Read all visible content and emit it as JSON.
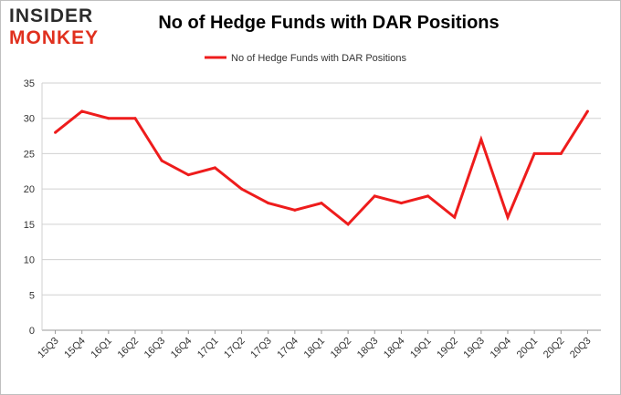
{
  "logo": {
    "line1": "INSIDER",
    "line2": "MONKEY"
  },
  "chart_data": {
    "type": "line",
    "title": "No of Hedge Funds with DAR Positions",
    "xlabel": "",
    "ylabel": "",
    "categories": [
      "15Q3",
      "15Q4",
      "16Q1",
      "16Q2",
      "16Q3",
      "16Q4",
      "17Q1",
      "17Q2",
      "17Q3",
      "17Q4",
      "18Q1",
      "18Q2",
      "18Q3",
      "18Q4",
      "19Q1",
      "19Q2",
      "19Q3",
      "19Q4",
      "20Q1",
      "20Q2",
      "20Q3"
    ],
    "series": [
      {
        "name": "No of Hedge Funds with DAR Positions",
        "color": "#ee1c1c",
        "values": [
          28,
          31,
          30,
          30,
          24,
          22,
          23,
          20,
          18,
          17,
          18,
          15,
          19,
          18,
          19,
          16,
          27,
          16,
          25,
          25,
          31
        ]
      }
    ],
    "ylim": [
      0,
      35
    ],
    "yticks": [
      0,
      5,
      10,
      15,
      20,
      25,
      30,
      35
    ],
    "grid": true,
    "legend": "top-center"
  }
}
